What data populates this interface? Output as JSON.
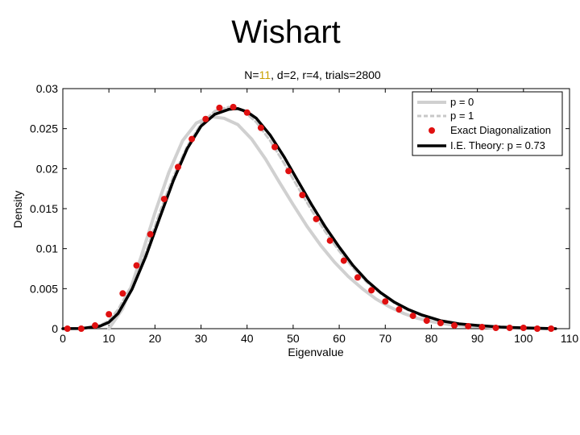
{
  "slide": {
    "title": "Wishart"
  },
  "chart_data": {
    "type": "line",
    "title_parts": [
      "N=",
      "11",
      ", d=2, r=4, trials=2800"
    ],
    "xlabel": "Eigenvalue",
    "ylabel": "Density",
    "xlim": [
      0,
      110
    ],
    "ylim": [
      0,
      0.03
    ],
    "xticks": [
      0,
      10,
      20,
      30,
      40,
      50,
      60,
      70,
      80,
      90,
      100,
      110
    ],
    "yticks": [
      0,
      0.005,
      0.01,
      0.015,
      0.02,
      0.025,
      0.03
    ],
    "ytick_labels": [
      "0",
      "0.005",
      "0.01",
      "0.015",
      "0.02",
      "0.025",
      "0.03"
    ],
    "legend_position": "top-right",
    "colors": {
      "p0": "#d0d0d0",
      "p1": "#c8c8c8",
      "exact": "#e01010",
      "ie": "#000000",
      "title_accent": "#c8a000"
    },
    "series": [
      {
        "name": "p = 0",
        "style": "thick-light-gray-line",
        "x": [
          10,
          13,
          15,
          17,
          20,
          23,
          26,
          29,
          32,
          35,
          38,
          41,
          44,
          47,
          50,
          53,
          56,
          59,
          62,
          65,
          68,
          71,
          74,
          77,
          80,
          84,
          88,
          92,
          96,
          100,
          105
        ],
        "y": [
          0,
          0.0025,
          0.0055,
          0.009,
          0.0145,
          0.0195,
          0.0235,
          0.0257,
          0.0265,
          0.0263,
          0.0255,
          0.0237,
          0.0212,
          0.0183,
          0.0155,
          0.0128,
          0.0104,
          0.0083,
          0.0065,
          0.005,
          0.0037,
          0.0027,
          0.0019,
          0.0013,
          0.0009,
          0.0005,
          0.0003,
          0.0002,
          0.0001,
          5e-05,
          0
        ]
      },
      {
        "name": "p = 1",
        "style": "dashed-light-gray-line",
        "x": [
          0,
          4,
          8,
          10,
          12,
          15,
          18,
          21,
          24,
          27,
          30,
          33,
          36,
          39,
          42,
          45,
          48,
          51,
          54,
          57,
          60,
          63,
          66,
          69,
          72,
          75,
          78,
          82,
          86,
          90,
          95,
          100,
          107
        ],
        "y": [
          0,
          5e-05,
          0.0004,
          0.001,
          0.0024,
          0.0055,
          0.0095,
          0.0145,
          0.019,
          0.0228,
          0.0256,
          0.0272,
          0.0277,
          0.0273,
          0.0258,
          0.0235,
          0.0207,
          0.0177,
          0.0148,
          0.0121,
          0.0097,
          0.0076,
          0.0058,
          0.0044,
          0.0032,
          0.0023,
          0.0016,
          0.001,
          0.0006,
          0.0004,
          0.0002,
          0.0001,
          0
        ]
      },
      {
        "name": "Exact Diagonalization",
        "style": "red-dots",
        "x": [
          1,
          4,
          7,
          10,
          13,
          16,
          19,
          22,
          25,
          28,
          31,
          34,
          37,
          40,
          43,
          46,
          49,
          52,
          55,
          58,
          61,
          64,
          67,
          70,
          73,
          76,
          79,
          82,
          85,
          88,
          91,
          94,
          97,
          100,
          103,
          106
        ],
        "y": [
          0,
          0,
          0.0004,
          0.0018,
          0.0044,
          0.0079,
          0.0118,
          0.0162,
          0.0202,
          0.0237,
          0.0262,
          0.0276,
          0.0277,
          0.027,
          0.0251,
          0.0227,
          0.0197,
          0.0167,
          0.0137,
          0.011,
          0.0085,
          0.0064,
          0.0048,
          0.0034,
          0.0024,
          0.0016,
          0.001,
          0.0007,
          0.0004,
          0.0003,
          0.0002,
          0.0001,
          0.0001,
          0.0001,
          0,
          0
        ]
      },
      {
        "name": "I.E. Theory: p = 0.73",
        "style": "thick-black-line",
        "x": [
          0,
          4,
          8,
          10,
          12,
          15,
          18,
          21,
          24,
          27,
          30,
          33,
          36,
          38,
          40,
          42,
          45,
          48,
          51,
          54,
          57,
          60,
          63,
          66,
          69,
          72,
          75,
          78,
          82,
          86,
          90,
          95,
          100,
          107
        ],
        "y": [
          0,
          3e-05,
          0.0003,
          0.0008,
          0.0019,
          0.0049,
          0.009,
          0.0138,
          0.0185,
          0.0225,
          0.0253,
          0.0268,
          0.0274,
          0.0275,
          0.0271,
          0.0263,
          0.0242,
          0.0215,
          0.0185,
          0.0155,
          0.0127,
          0.0102,
          0.0079,
          0.006,
          0.0045,
          0.0033,
          0.0024,
          0.0017,
          0.001,
          0.0006,
          0.0004,
          0.0002,
          0.0001,
          0
        ]
      }
    ]
  }
}
